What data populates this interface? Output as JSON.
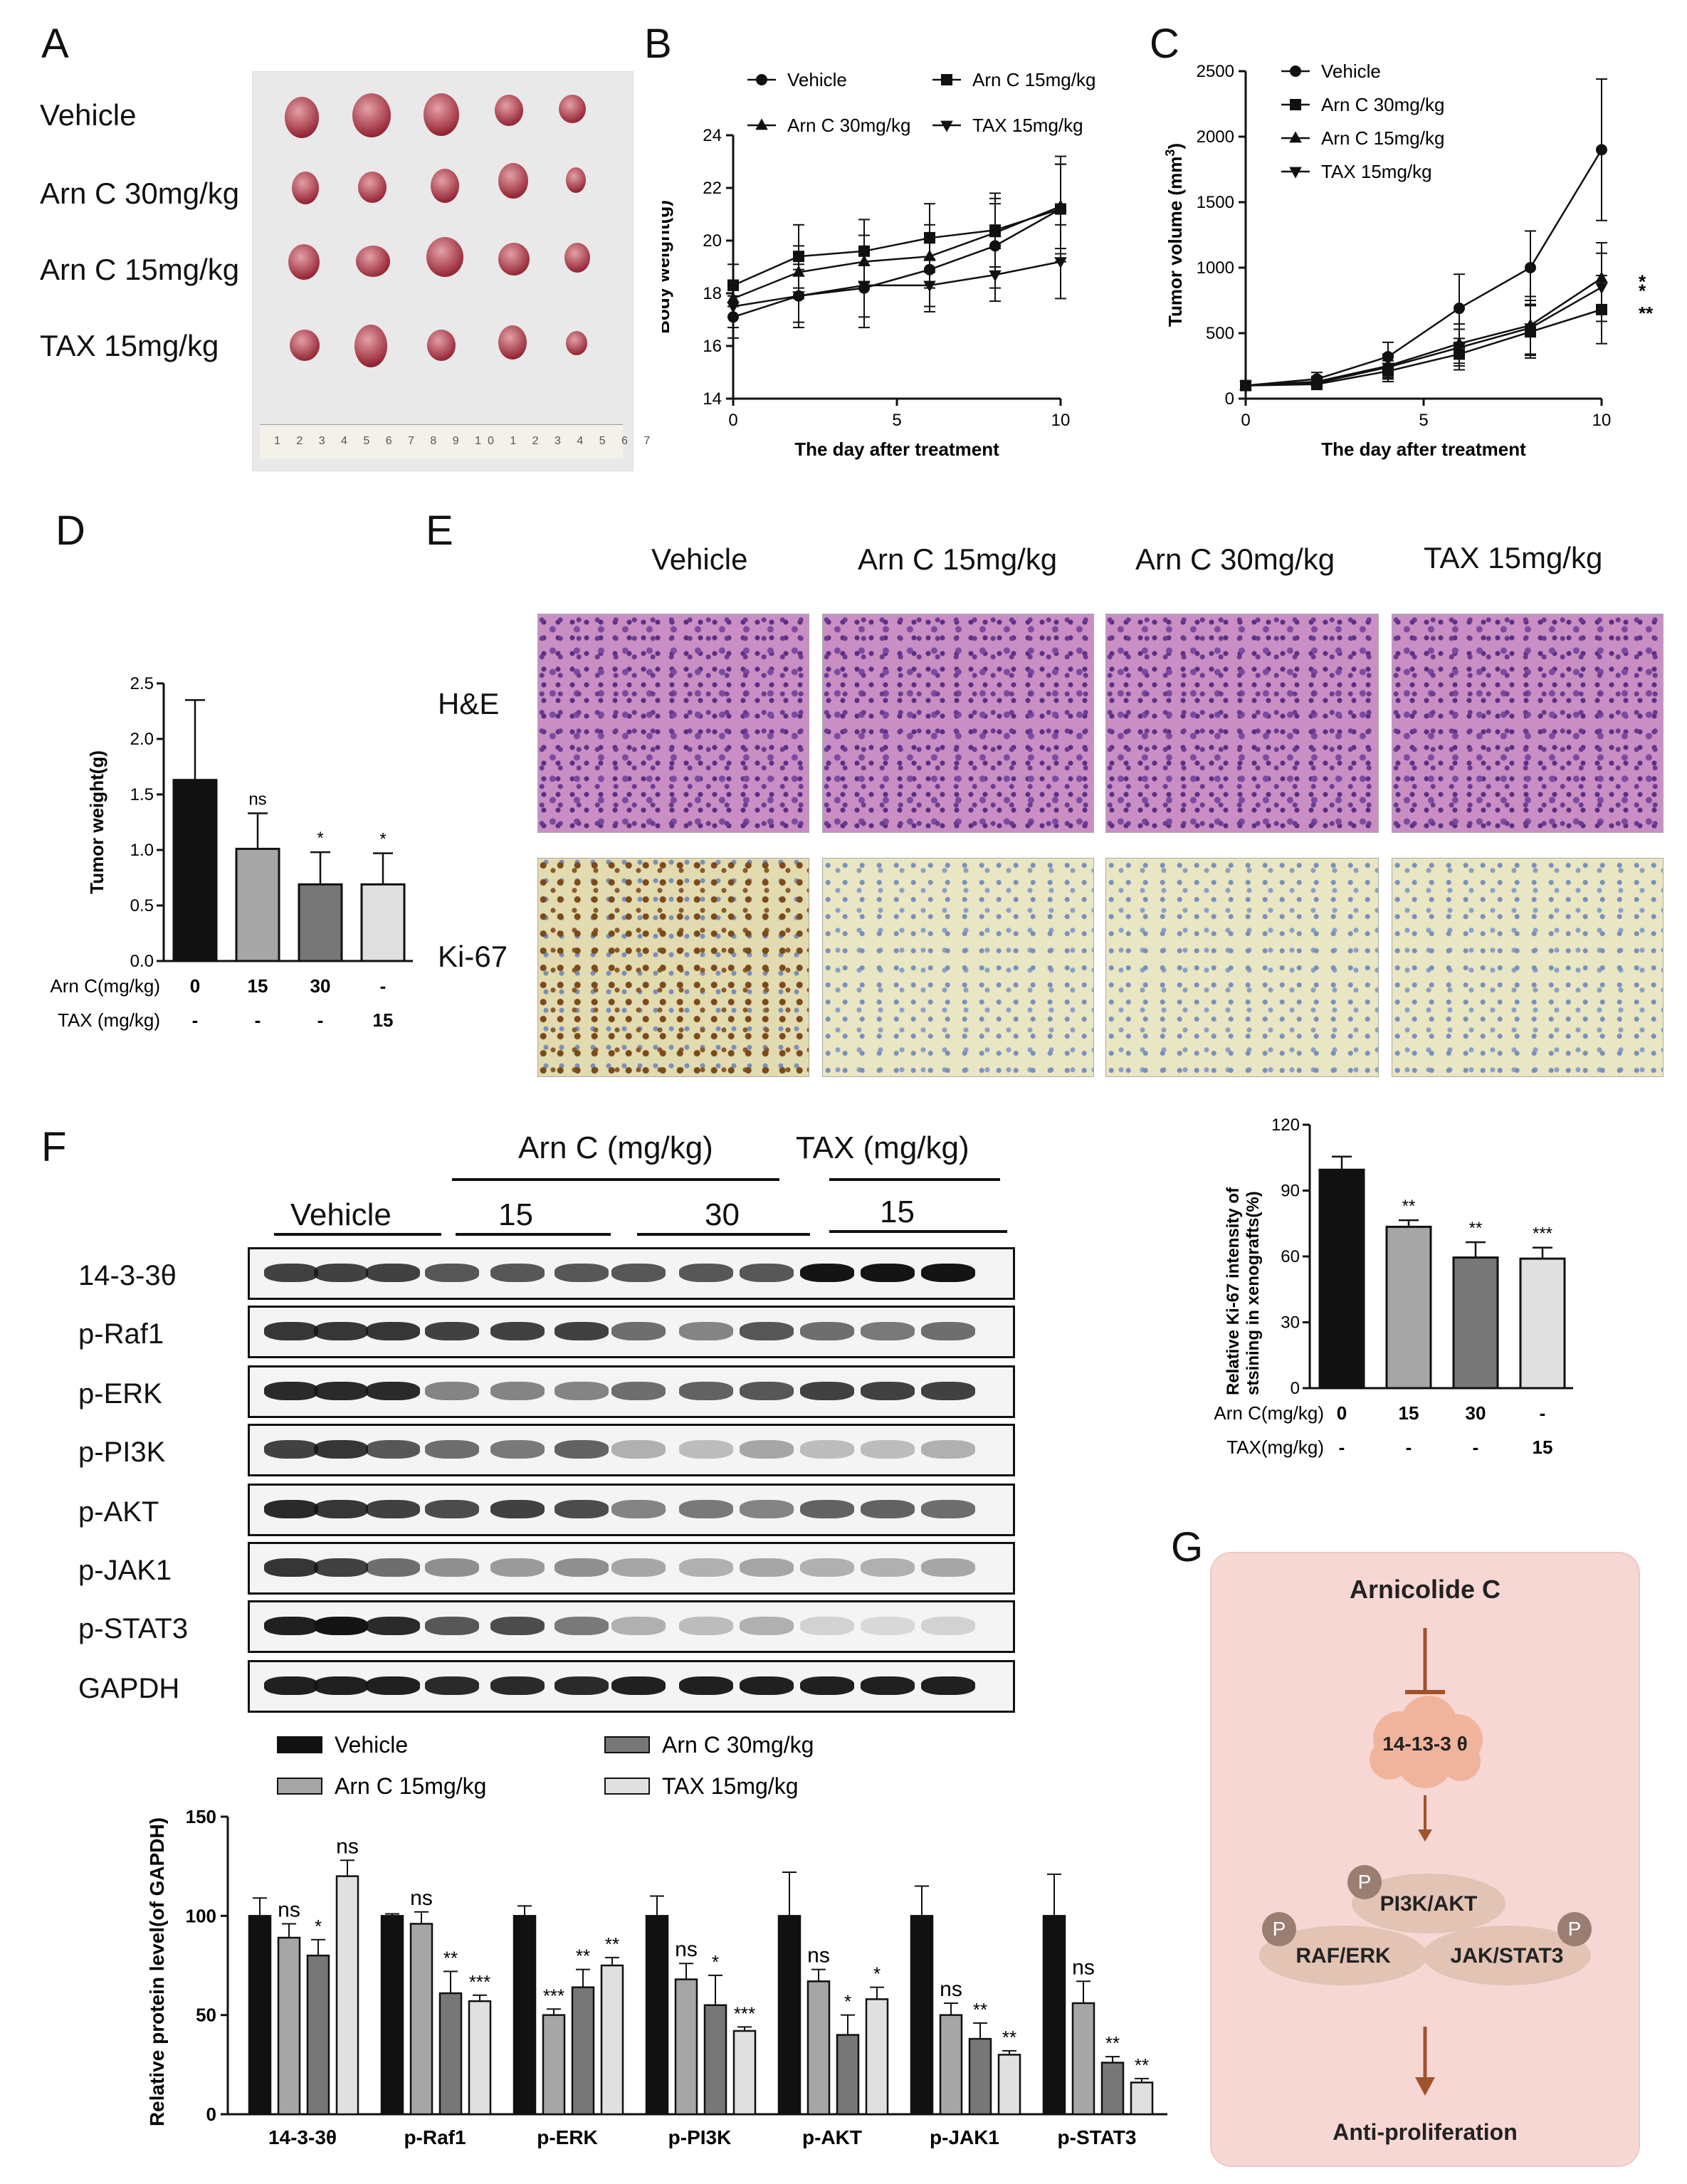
{
  "panel_letters": {
    "A": "A",
    "B": "B",
    "C": "C",
    "D": "D",
    "E": "E",
    "F": "F",
    "G": "G"
  },
  "panelA": {
    "rows": [
      "Vehicle",
      "Arn C 30mg/kg",
      "Arn C 15mg/kg",
      "TAX 15mg/kg"
    ],
    "ruler_digits": "1 2 3 4 5 6 7 8 9 10 1 2 3 4 5 6 7"
  },
  "panelE": {
    "columns": [
      "Vehicle",
      "Arn C 15mg/kg",
      "Arn C 30mg/kg",
      "TAX 15mg/kg"
    ],
    "rows": [
      "H&E",
      "Ki-67"
    ]
  },
  "panelF": {
    "group_arn": "Arn C (mg/kg)",
    "group_tax": "TAX (mg/kg)",
    "vehicle": "Vehicle",
    "dose15a": "15",
    "dose30": "30",
    "dose15b": "15",
    "proteins": [
      "14-3-3θ",
      "p-Raf1",
      "p-ERK",
      "p-PI3K",
      "p-AKT",
      "p-JAK1",
      "p-STAT3",
      "GAPDH"
    ]
  },
  "panelG": {
    "top": "Arnicolide C",
    "target": "14-13-3 θ",
    "node1": "PI3K/AKT",
    "node2": "RAF/ERK",
    "node3": "JAK/STAT3",
    "phospho": "P",
    "bottom": "Anti-proliferation"
  },
  "colors": {
    "black": "#111111",
    "dark_gray": "#777777",
    "gray": "#a6a6a6",
    "light_gray": "#e0e0e0",
    "g_arrow": "#a0522d"
  },
  "chart_data": [
    {
      "id": "B",
      "type": "line",
      "xlabel": "The day after treatment",
      "ylabel": "Body weight(g)",
      "xlim": [
        0,
        10
      ],
      "ylim": [
        14,
        24
      ],
      "xticks": [
        "0",
        "5",
        "10"
      ],
      "yticks": [
        "14",
        "16",
        "18",
        "20",
        "22",
        "24"
      ],
      "legend": [
        "Vehicle",
        "Arn C 15mg/kg",
        "Arn C 30mg/kg",
        "TAX 15mg/kg"
      ],
      "x": [
        0,
        2,
        4,
        6,
        8,
        10
      ],
      "series": [
        {
          "name": "Vehicle",
          "marker": "circle",
          "values": [
            17.1,
            17.9,
            18.2,
            18.9,
            19.8,
            21.2
          ],
          "err": [
            0.8,
            1.2,
            1.5,
            1.4,
            1.6,
            2.0
          ]
        },
        {
          "name": "Arn C 15mg/kg",
          "marker": "square",
          "values": [
            18.3,
            19.4,
            19.6,
            20.1,
            20.4,
            21.2
          ],
          "err": [
            0.8,
            1.2,
            1.2,
            1.3,
            1.4,
            1.7
          ]
        },
        {
          "name": "Arn C 30mg/kg",
          "marker": "triangle-up",
          "values": [
            17.8,
            18.8,
            19.2,
            19.4,
            20.3,
            21.3
          ],
          "err": [
            0.7,
            1.0,
            1.0,
            1.2,
            1.3,
            1.6
          ]
        },
        {
          "name": "TAX 15mg/kg",
          "marker": "triangle-down",
          "values": [
            17.5,
            17.9,
            18.3,
            18.3,
            18.7,
            19.2
          ],
          "err": [
            0.8,
            1.0,
            1.2,
            1.0,
            1.0,
            1.4
          ]
        }
      ]
    },
    {
      "id": "C",
      "type": "line",
      "xlabel": "The day after treatment",
      "ylabel": "Tumor volume (mm",
      "ylabel_sup": "3",
      "ylabel_end": ")",
      "xlim": [
        0,
        10
      ],
      "ylim": [
        0,
        2500
      ],
      "xticks": [
        "0",
        "5",
        "10"
      ],
      "yticks": [
        "0",
        "500",
        "1000",
        "1500",
        "2000",
        "2500"
      ],
      "legend": [
        "Vehicle",
        "Arn C 30mg/kg",
        "Arn C 15mg/kg",
        "TAX 15mg/kg"
      ],
      "x": [
        0,
        2,
        4,
        6,
        8,
        10
      ],
      "series": [
        {
          "name": "Vehicle",
          "marker": "circle",
          "values": [
            100,
            150,
            320,
            690,
            1000,
            1900
          ],
          "err": [
            30,
            50,
            110,
            260,
            280,
            540
          ]
        },
        {
          "name": "Arn C 30mg/kg",
          "marker": "square",
          "values": [
            100,
            110,
            210,
            340,
            510,
            680
          ],
          "err": [
            30,
            40,
            80,
            120,
            200,
            260
          ]
        },
        {
          "name": "Arn C 15mg/kg",
          "marker": "triangle-up",
          "values": [
            100,
            130,
            250,
            420,
            560,
            920
          ],
          "err": [
            30,
            40,
            90,
            150,
            220,
            270
          ]
        },
        {
          "name": "TAX 15mg/kg",
          "marker": "triangle-down",
          "values": [
            100,
            120,
            240,
            390,
            540,
            850
          ],
          "err": [
            30,
            40,
            90,
            140,
            210,
            260
          ]
        }
      ],
      "significance": [
        "*",
        "*",
        "**"
      ]
    },
    {
      "id": "D",
      "type": "bar",
      "ylabel": "Tumor weight(g)",
      "ylim": [
        0,
        2.5
      ],
      "yticks": [
        "0.0",
        "0.5",
        "1.0",
        "1.5",
        "2.0",
        "2.5"
      ],
      "values": [
        1.63,
        1.01,
        0.69,
        0.69
      ],
      "err": [
        0.72,
        0.32,
        0.29,
        0.28
      ],
      "significance": [
        "",
        "ns",
        "*",
        "*"
      ],
      "row1_label": "Arn C(mg/kg)",
      "row1": [
        "0",
        "15",
        "30",
        "-"
      ],
      "row2_label": "TAX  (mg/kg)",
      "row2": [
        "-",
        "-",
        "-",
        "15"
      ]
    },
    {
      "id": "Ki67",
      "type": "bar",
      "ylabel": "Relative Ki-67 intensity of stsining in xenografts(%)",
      "ylim": [
        0,
        120
      ],
      "yticks": [
        "0",
        "30",
        "60",
        "90",
        "120"
      ],
      "values": [
        99.5,
        73.5,
        59.5,
        59
      ],
      "err": [
        6,
        3,
        7,
        5
      ],
      "significance": [
        "",
        "**",
        "**",
        "***"
      ],
      "row1_label": "Arn C(mg/kg)",
      "row1": [
        "0",
        "15",
        "30",
        "-"
      ],
      "row2_label": "TAX(mg/kg)",
      "row2": [
        "-",
        "-",
        "-",
        "15"
      ]
    },
    {
      "id": "F",
      "type": "bar",
      "ylabel": "Relative protein level(of GAPDH)",
      "ylim": [
        0,
        150
      ],
      "yticks": [
        "0",
        "50",
        "100",
        "150"
      ],
      "categories": [
        "14-3-3θ",
        "p-Raf1",
        "p-ERK",
        "p-PI3K",
        "p-AKT",
        "p-JAK1",
        "p-STAT3"
      ],
      "legend": [
        "Vehicle",
        "Arn C 30mg/kg",
        "Arn C 15mg/kg",
        "TAX 15mg/kg"
      ],
      "series": [
        {
          "name": "Vehicle",
          "values": [
            100,
            100,
            100,
            100,
            100,
            100,
            100
          ],
          "err": [
            9,
            1,
            5,
            10,
            22,
            15,
            21
          ],
          "sig": [
            "",
            "",
            "",
            "",
            "",
            "",
            ""
          ]
        },
        {
          "name": "Arn C 15mg/kg",
          "values": [
            89,
            96,
            50,
            68,
            67,
            50,
            56
          ],
          "err": [
            7,
            6,
            3,
            8,
            6,
            6,
            11
          ],
          "sig": [
            "ns",
            "ns",
            "***",
            "ns",
            "ns",
            "ns",
            "ns"
          ]
        },
        {
          "name": "Arn C 30mg/kg",
          "values": [
            80,
            61,
            64,
            55,
            40,
            38,
            26
          ],
          "err": [
            8,
            11,
            9,
            15,
            10,
            8,
            3
          ],
          "sig": [
            "*",
            "**",
            "**",
            "*",
            "*",
            "**",
            "**"
          ]
        },
        {
          "name": "TAX 15mg/kg",
          "values": [
            120,
            57,
            75,
            42,
            58,
            30,
            16
          ],
          "err": [
            8,
            3,
            4,
            2,
            6,
            2,
            2
          ],
          "sig": [
            "ns",
            "***",
            "**",
            "***",
            "*",
            "**",
            "**"
          ]
        }
      ]
    }
  ]
}
